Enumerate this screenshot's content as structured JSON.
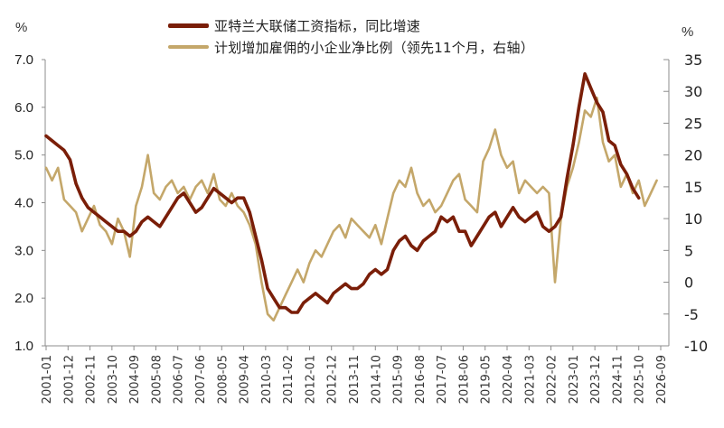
{
  "chart_data": {
    "type": "line",
    "title": "",
    "legend": {
      "position": "top-center",
      "entries": [
        {
          "name": "亚特兰大联储工资指标，同比增速",
          "color": "#7a1e08",
          "axis": "left"
        },
        {
          "name": "计划增加雇佣的小企业净比例（领先11个月，右轴）",
          "color": "#c4a76a",
          "axis": "right"
        }
      ]
    },
    "left_axis": {
      "unit": "%",
      "min": 1.0,
      "max": 7.0,
      "ticks": [
        "7.0",
        "6.0",
        "5.0",
        "4.0",
        "3.0",
        "2.0",
        "1.0"
      ]
    },
    "right_axis": {
      "unit": "%",
      "min": -10,
      "max": 35,
      "ticks": [
        "35",
        "30",
        "25",
        "20",
        "15",
        "10",
        "5",
        "0",
        "-5",
        "-10"
      ]
    },
    "x_tick_labels": [
      "2001-01",
      "2001-12",
      "2002-11",
      "2003-10",
      "2004-09",
      "2005-08",
      "2006-07",
      "2007-06",
      "2008-05",
      "2009-04",
      "2010-03",
      "2011-02",
      "2012-01",
      "2012-12",
      "2013-11",
      "2014-10",
      "2015-09",
      "2016-08",
      "2017-07",
      "2018-06",
      "2019-05",
      "2020-04",
      "2021-03",
      "2022-02",
      "2023-01",
      "2023-12",
      "2024-11",
      "2025-10",
      "2026-09"
    ],
    "x_start": "2001-01",
    "x_end": "2026-09",
    "grid": false,
    "series": [
      {
        "name": "亚特兰大联储工资指标，同比增速",
        "axis": "left",
        "color": "#7a1e08",
        "x_month_index": [
          0,
          3,
          6,
          9,
          12,
          15,
          18,
          21,
          24,
          27,
          30,
          33,
          36,
          39,
          42,
          45,
          48,
          51,
          54,
          57,
          60,
          63,
          66,
          69,
          72,
          75,
          78,
          81,
          84,
          87,
          90,
          93,
          96,
          99,
          102,
          105,
          108,
          111,
          114,
          117,
          120,
          123,
          126,
          129,
          132,
          135,
          138,
          141,
          144,
          147,
          150,
          153,
          156,
          159,
          162,
          165,
          168,
          171,
          174,
          177,
          180,
          183,
          186,
          189,
          192,
          195,
          198,
          201,
          204,
          207,
          210,
          213,
          216,
          219,
          222,
          225,
          228,
          231,
          234,
          237,
          240,
          243,
          246,
          249,
          252,
          255,
          258,
          261,
          264,
          267,
          270,
          273,
          276,
          279,
          282,
          285,
          288,
          291,
          294,
          297
        ],
        "values": [
          5.4,
          5.3,
          5.2,
          5.1,
          4.9,
          4.4,
          4.1,
          3.9,
          3.8,
          3.7,
          3.6,
          3.5,
          3.4,
          3.4,
          3.3,
          3.4,
          3.6,
          3.7,
          3.6,
          3.5,
          3.7,
          3.9,
          4.1,
          4.2,
          4.0,
          3.8,
          3.9,
          4.1,
          4.3,
          4.2,
          4.1,
          4.0,
          4.1,
          4.1,
          3.8,
          3.3,
          2.8,
          2.2,
          2.0,
          1.8,
          1.8,
          1.7,
          1.7,
          1.9,
          2.0,
          2.1,
          2.0,
          1.9,
          2.1,
          2.2,
          2.3,
          2.2,
          2.2,
          2.3,
          2.5,
          2.6,
          2.5,
          2.6,
          3.0,
          3.2,
          3.3,
          3.1,
          3.0,
          3.2,
          3.3,
          3.4,
          3.7,
          3.6,
          3.7,
          3.4,
          3.4,
          3.1,
          3.3,
          3.5,
          3.7,
          3.8,
          3.5,
          3.7,
          3.9,
          3.7,
          3.6,
          3.7,
          3.8,
          3.5,
          3.4,
          3.5,
          3.7,
          4.5,
          5.2,
          6.0,
          6.7,
          6.4,
          6.1,
          5.9,
          5.3,
          5.2,
          4.8,
          4.6,
          4.3,
          4.1
        ]
      },
      {
        "name": "计划增加雇佣的小企业净比例（领先11个月，右轴）",
        "axis": "right",
        "color": "#c4a76a",
        "x_month_index": [
          0,
          3,
          6,
          9,
          12,
          15,
          18,
          21,
          24,
          27,
          30,
          33,
          36,
          39,
          42,
          45,
          48,
          51,
          54,
          57,
          60,
          63,
          66,
          69,
          72,
          75,
          78,
          81,
          84,
          87,
          90,
          93,
          96,
          99,
          102,
          105,
          108,
          111,
          114,
          117,
          120,
          123,
          126,
          129,
          132,
          135,
          138,
          141,
          144,
          147,
          150,
          153,
          156,
          159,
          162,
          165,
          168,
          171,
          174,
          177,
          180,
          183,
          186,
          189,
          192,
          195,
          198,
          201,
          204,
          207,
          210,
          213,
          216,
          219,
          222,
          225,
          228,
          231,
          234,
          237,
          240,
          243,
          246,
          249,
          252,
          255,
          258,
          261,
          264,
          267,
          270,
          273,
          276,
          279,
          282,
          285,
          288,
          291,
          294,
          297,
          300,
          303,
          306
        ],
        "values": [
          18,
          16,
          18,
          13,
          12,
          11,
          8,
          10,
          12,
          9,
          8,
          6,
          10,
          8,
          4,
          12,
          15,
          20,
          14,
          13,
          15,
          16,
          14,
          15,
          13,
          15,
          16,
          14,
          17,
          13,
          12,
          14,
          12,
          11,
          9,
          6,
          0,
          -5,
          -6,
          -4,
          -2,
          0,
          2,
          0,
          3,
          5,
          4,
          6,
          8,
          9,
          7,
          10,
          9,
          8,
          7,
          9,
          6,
          10,
          14,
          16,
          15,
          18,
          14,
          12,
          13,
          11,
          12,
          14,
          16,
          17,
          13,
          12,
          11,
          19,
          21,
          24,
          20,
          18,
          19,
          14,
          16,
          15,
          14,
          15,
          14,
          0,
          10,
          15,
          18,
          22,
          27,
          26,
          29,
          22,
          19,
          20,
          15,
          17,
          14,
          16,
          12,
          14,
          16,
          18,
          14,
          15
        ]
      }
    ]
  }
}
